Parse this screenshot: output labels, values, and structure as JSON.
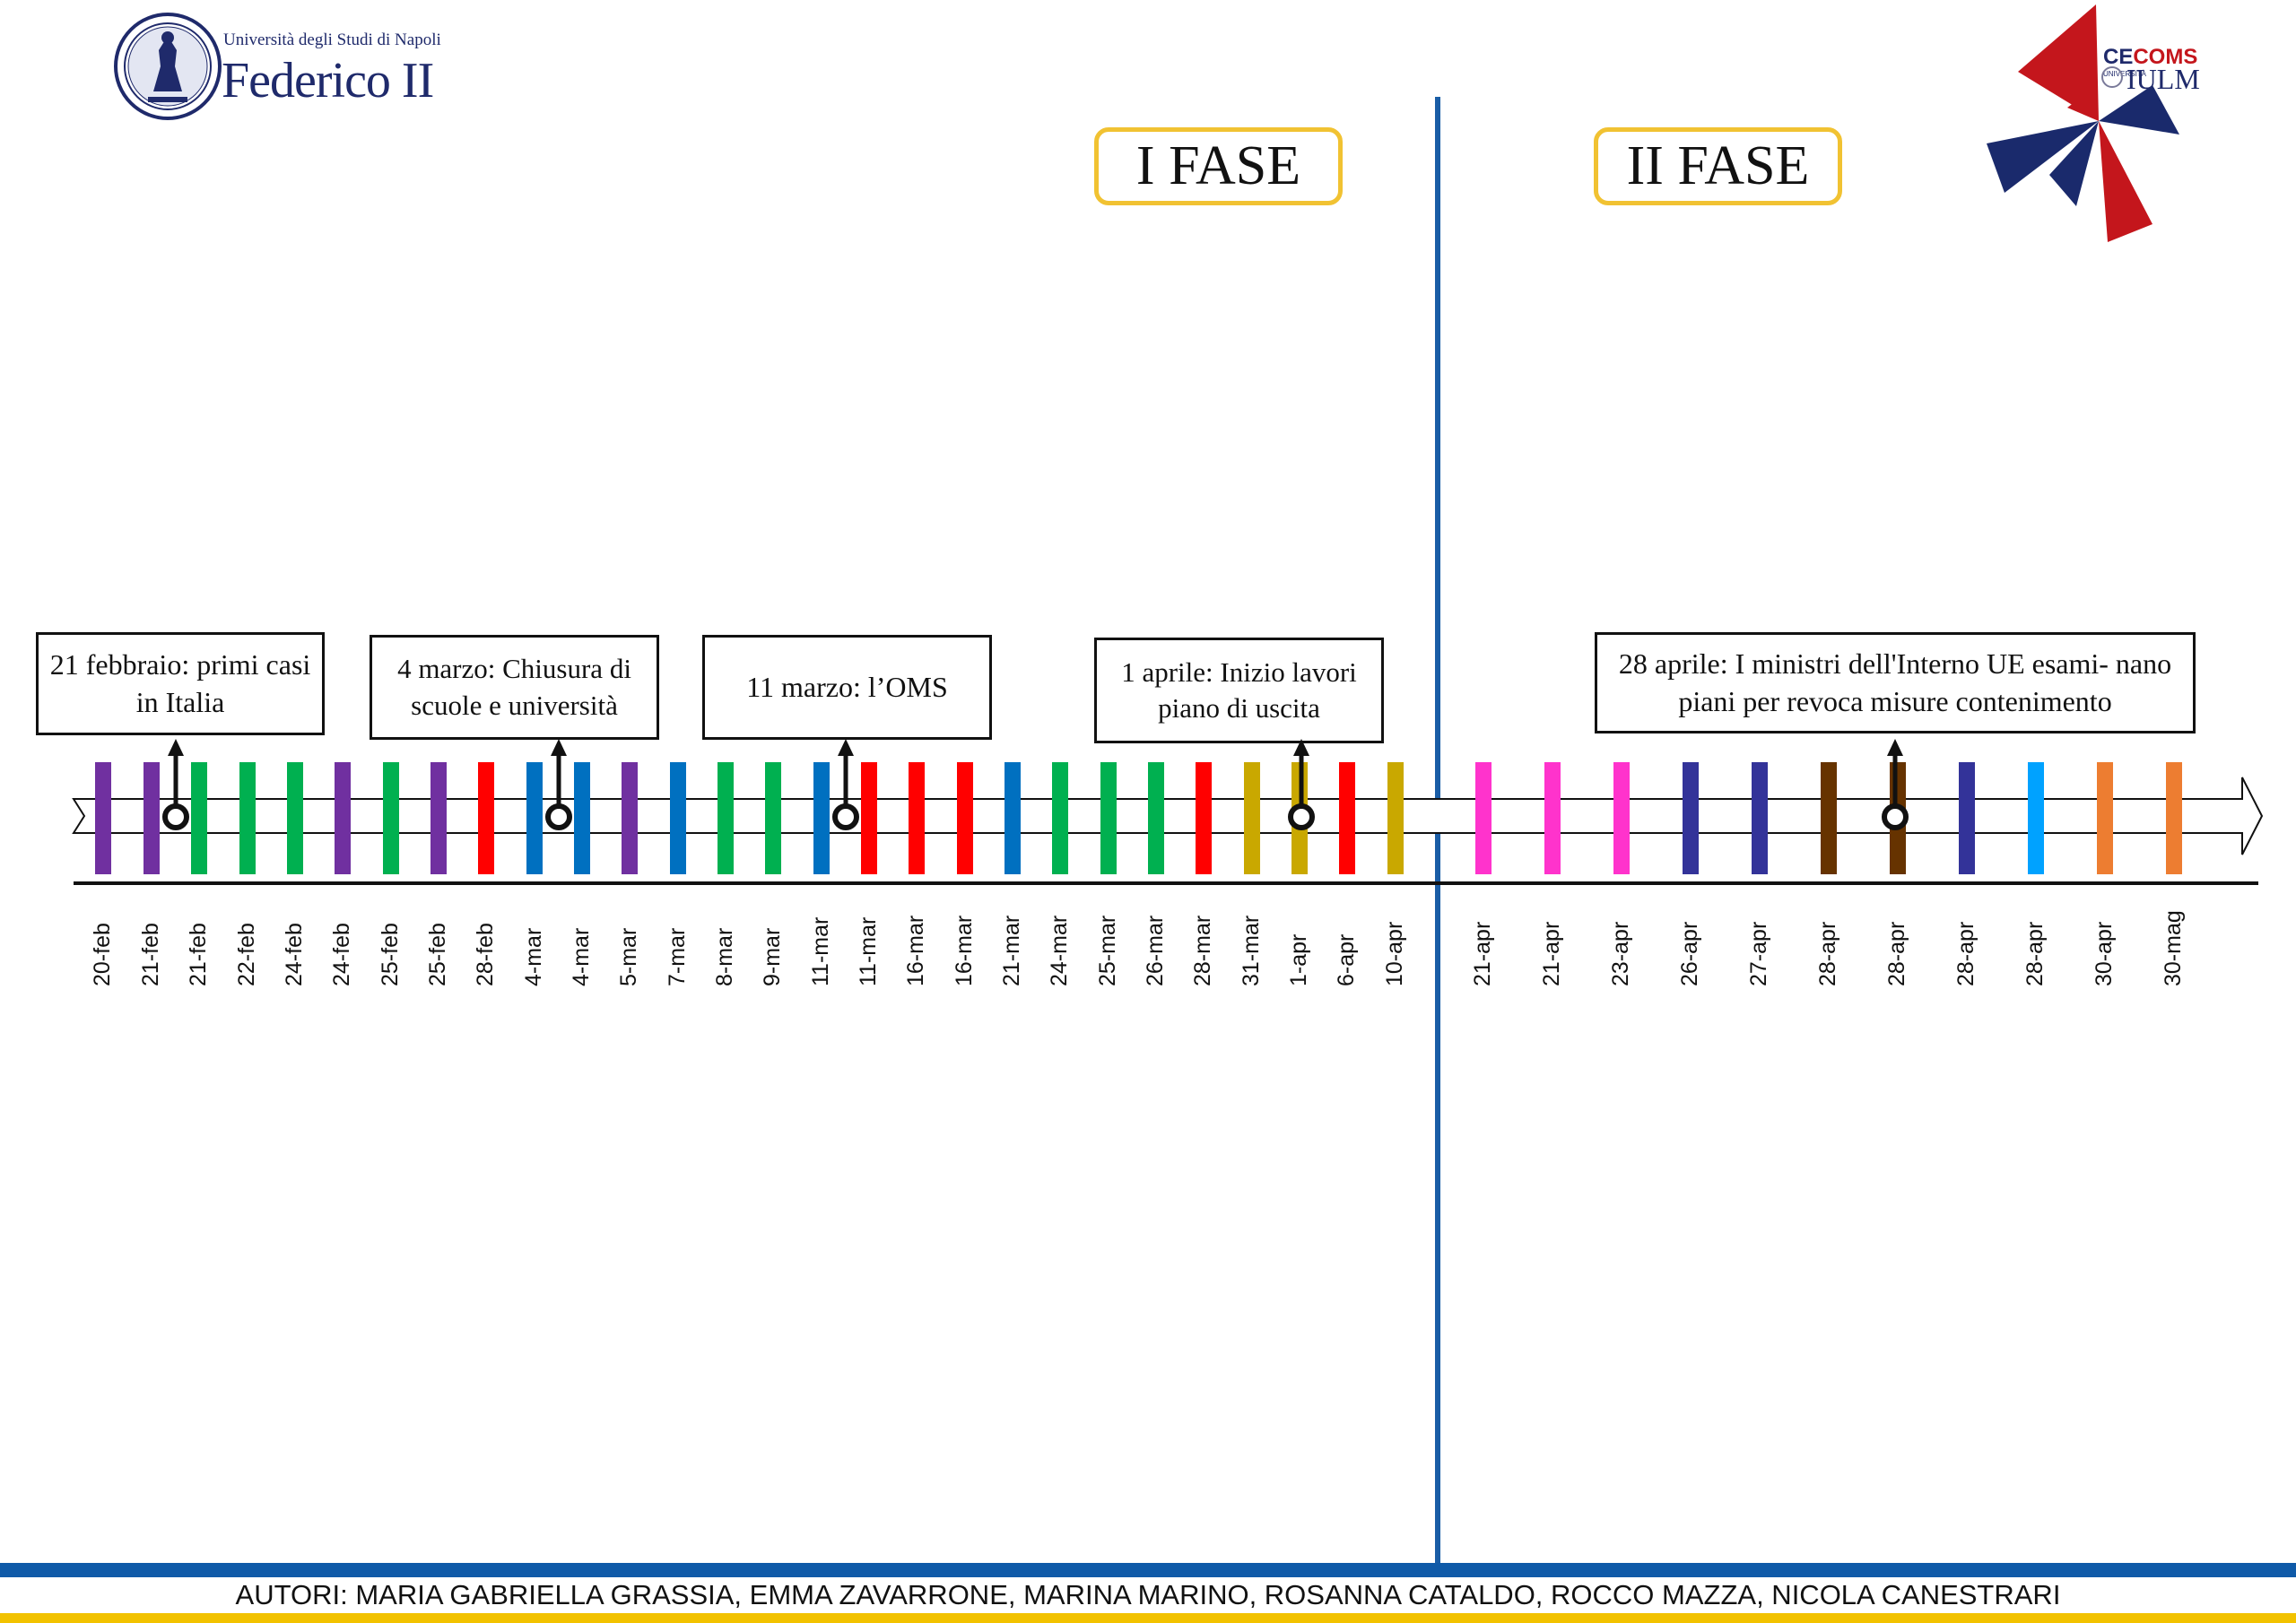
{
  "logos": {
    "federico": {
      "line1": "Università degli Studi di Napoli",
      "line2": "Federico II"
    },
    "cecoms": {
      "brand_part1": "CE",
      "brand_part2": "COMS",
      "sub": "UNIVERSITÀ",
      "iulm": "IULM"
    }
  },
  "phases": [
    {
      "label": "I FASE"
    },
    {
      "label": "II FASE"
    }
  ],
  "annotations": [
    {
      "text": "21 febbraio: primi casi in Italia"
    },
    {
      "text": "4 marzo: Chiusura di scuole e università"
    },
    {
      "text": "11 marzo: l’OMS"
    },
    {
      "text": "1 aprile: Inizio lavori piano di uscita"
    },
    {
      "text": "28 aprile: I ministri dell'Interno UE esami- nano piani per revoca misure contenimento"
    }
  ],
  "timeline": {
    "events": [
      {
        "date": "20-feb",
        "color": "#7030a0"
      },
      {
        "date": "21-feb",
        "color": "#7030a0"
      },
      {
        "date": "21-feb",
        "color": "#00b050"
      },
      {
        "date": "22-feb",
        "color": "#00b050"
      },
      {
        "date": "24-feb",
        "color": "#00b050"
      },
      {
        "date": "24-feb",
        "color": "#7030a0"
      },
      {
        "date": "25-feb",
        "color": "#00b050"
      },
      {
        "date": "25-feb",
        "color": "#7030a0"
      },
      {
        "date": "28-feb",
        "color": "#ff0000"
      },
      {
        "date": "4-mar",
        "color": "#0070c0"
      },
      {
        "date": "4-mar",
        "color": "#0070c0"
      },
      {
        "date": "5-mar",
        "color": "#7030a0"
      },
      {
        "date": "7-mar",
        "color": "#0070c0"
      },
      {
        "date": "8-mar",
        "color": "#00b050"
      },
      {
        "date": "9-mar",
        "color": "#00b050"
      },
      {
        "date": "11-mar",
        "color": "#0070c0"
      },
      {
        "date": "11-mar",
        "color": "#ff0000"
      },
      {
        "date": "16-mar",
        "color": "#ff0000"
      },
      {
        "date": "16-mar",
        "color": "#ff0000"
      },
      {
        "date": "21-mar",
        "color": "#0070c0"
      },
      {
        "date": "24-mar",
        "color": "#00b050"
      },
      {
        "date": "25-mar",
        "color": "#00b050"
      },
      {
        "date": "26-mar",
        "color": "#00b050"
      },
      {
        "date": "28-mar",
        "color": "#ff0000"
      },
      {
        "date": "31-mar",
        "color": "#c9a800"
      },
      {
        "date": "1-apr",
        "color": "#c9a800"
      },
      {
        "date": "6-apr",
        "color": "#ff0000"
      },
      {
        "date": "10-apr",
        "color": "#c9a800"
      },
      {
        "date": "21-apr",
        "color": "#ff33cc"
      },
      {
        "date": "21-apr",
        "color": "#ff33cc"
      },
      {
        "date": "23-apr",
        "color": "#ff33cc"
      },
      {
        "date": "26-apr",
        "color": "#333399"
      },
      {
        "date": "27-apr",
        "color": "#333399"
      },
      {
        "date": "28-apr",
        "color": "#663300"
      },
      {
        "date": "28-apr",
        "color": "#663300"
      },
      {
        "date": "28-apr",
        "color": "#333399"
      },
      {
        "date": "28-apr",
        "color": "#00a2ff"
      },
      {
        "date": "30-apr",
        "color": "#ed7d31"
      },
      {
        "date": "30-mag",
        "color": "#ed7d31"
      }
    ]
  },
  "footer": {
    "authors": "AUTORI: MARIA GABRIELLA GRASSIA, EMMA ZAVARRONE, MARINA MARINO, ROSANNA CATALDO, ROCCO MAZZA, NICOLA CANESTRARI"
  }
}
